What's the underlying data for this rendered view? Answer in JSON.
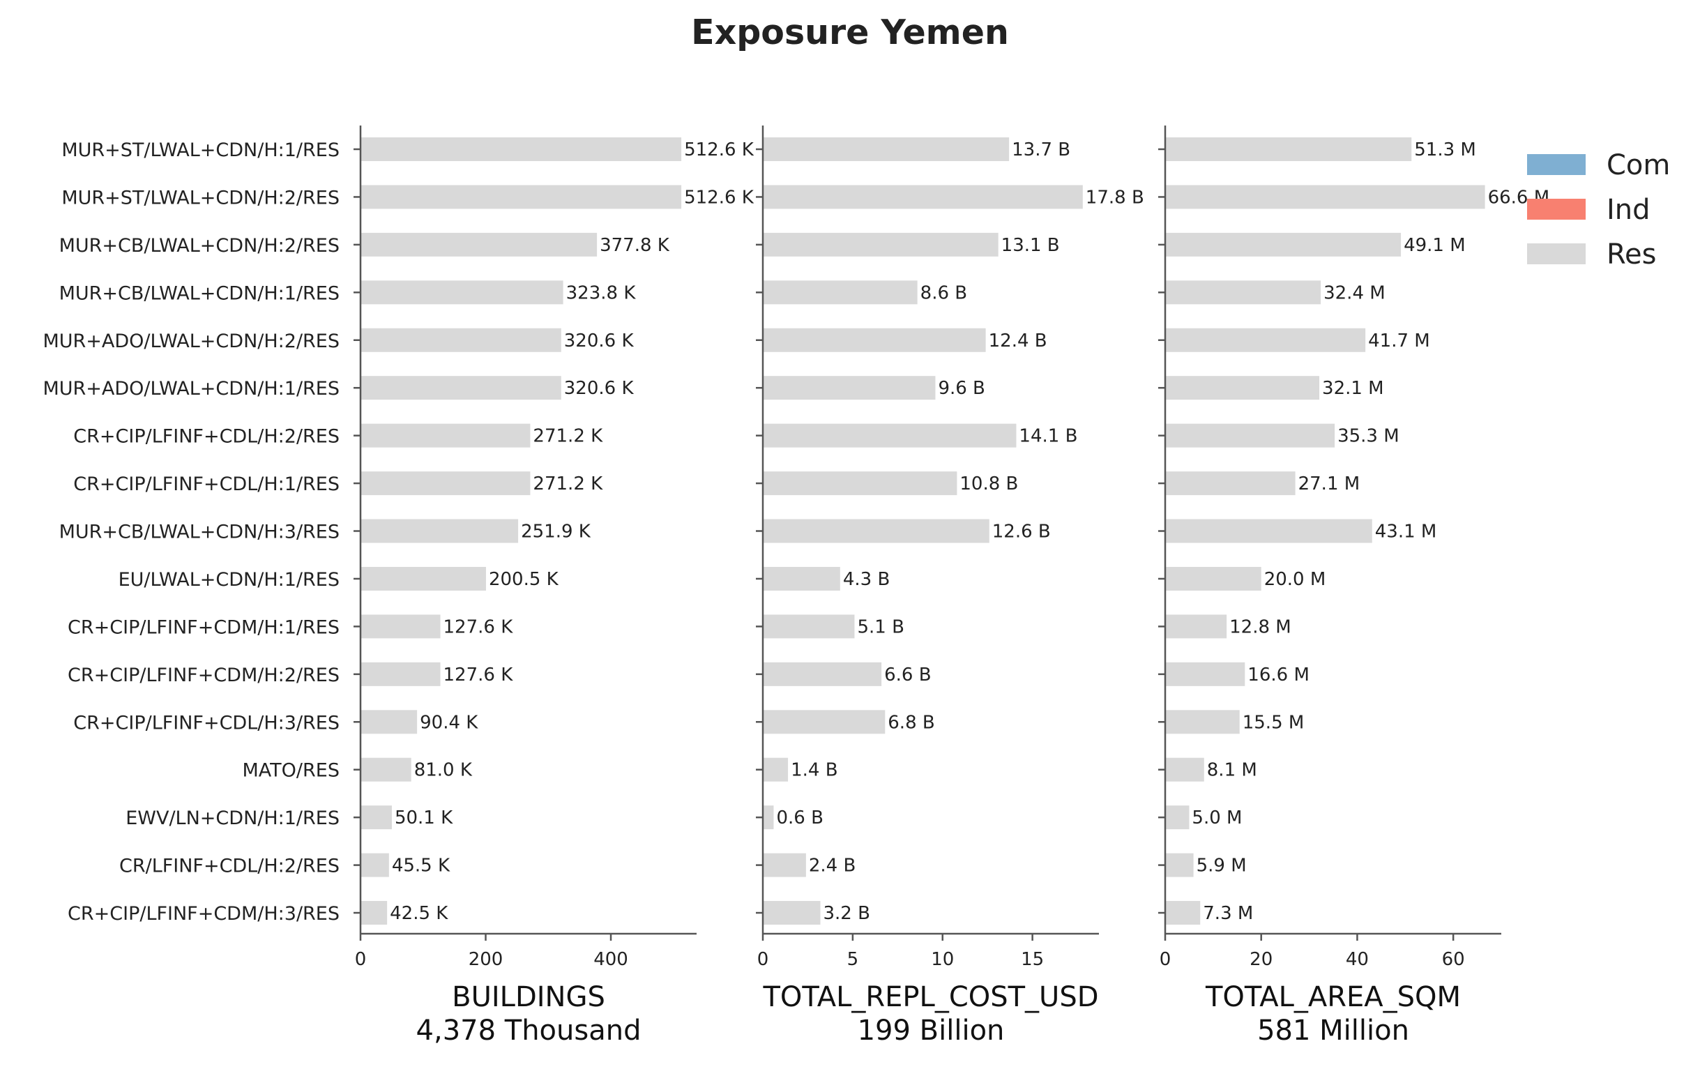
{
  "chart_data": {
    "type": "bar",
    "orientation": "horizontal",
    "title": "Exposure Yemen",
    "categories": [
      "MUR+ST/LWAL+CDN/H:1/RES",
      "MUR+ST/LWAL+CDN/H:2/RES",
      "MUR+CB/LWAL+CDN/H:2/RES",
      "MUR+CB/LWAL+CDN/H:1/RES",
      "MUR+ADO/LWAL+CDN/H:2/RES",
      "MUR+ADO/LWAL+CDN/H:1/RES",
      "CR+CIP/LFINF+CDL/H:2/RES",
      "CR+CIP/LFINF+CDL/H:1/RES",
      "MUR+CB/LWAL+CDN/H:3/RES",
      "EU/LWAL+CDN/H:1/RES",
      "CR+CIP/LFINF+CDM/H:1/RES",
      "CR+CIP/LFINF+CDM/H:2/RES",
      "CR+CIP/LFINF+CDL/H:3/RES",
      "MATO/RES",
      "EWV/LN+CDN/H:1/RES",
      "CR/LFINF+CDL/H:2/RES",
      "CR+CIP/LFINF+CDM/H:3/RES"
    ],
    "legend": {
      "placement": "top-right",
      "entries": [
        {
          "name": "Com",
          "color": "#7fafd2"
        },
        {
          "name": "Ind",
          "color": "#f88070"
        },
        {
          "name": "Res",
          "color": "#d9d9d9"
        }
      ]
    },
    "panels": [
      {
        "xlabel": "BUILDINGS",
        "total": "4,378 Thousand",
        "unit_suffix": "K",
        "xlim": [
          0,
          537
        ],
        "ticks": [
          0,
          200,
          400
        ],
        "series": [
          {
            "name": "Res",
            "color": "#d9d9d9",
            "values": [
              512.6,
              512.6,
              377.8,
              323.8,
              320.6,
              320.6,
              271.2,
              271.2,
              251.9,
              200.5,
              127.6,
              127.6,
              90.4,
              81.0,
              50.1,
              45.5,
              42.5
            ]
          }
        ],
        "labels": [
          "512.6 K",
          "512.6 K",
          "377.8 K",
          "323.8 K",
          "320.6 K",
          "320.6 K",
          "271.2 K",
          "271.2 K",
          "251.9 K",
          "200.5 K",
          "127.6 K",
          "127.6 K",
          "90.4 K",
          "81.0 K",
          "50.1 K",
          "45.5 K",
          "42.5 K"
        ]
      },
      {
        "xlabel": "TOTAL_REPL_COST_USD",
        "total": "199 Billion",
        "unit_suffix": "B",
        "xlim": [
          0,
          18.7
        ],
        "ticks": [
          0,
          5,
          10,
          15
        ],
        "series": [
          {
            "name": "Res",
            "color": "#d9d9d9",
            "values": [
              13.7,
              17.8,
              13.1,
              8.6,
              12.4,
              9.6,
              14.1,
              10.8,
              12.6,
              4.3,
              5.1,
              6.6,
              6.8,
              1.4,
              0.6,
              2.4,
              3.2
            ]
          }
        ],
        "labels": [
          "13.7 B",
          "17.8 B",
          "13.1 B",
          "8.6 B",
          "12.4 B",
          "9.6 B",
          "14.1 B",
          "10.8 B",
          "12.6 B",
          "4.3 B",
          "5.1 B",
          "6.6 B",
          "6.8 B",
          "1.4 B",
          "0.6 B",
          "2.4 B",
          "3.2 B"
        ]
      },
      {
        "xlabel": "TOTAL_AREA_SQM",
        "total": "581 Million",
        "unit_suffix": "M",
        "xlim": [
          0,
          70
        ],
        "ticks": [
          0,
          20,
          40,
          60
        ],
        "series": [
          {
            "name": "Res",
            "color": "#d9d9d9",
            "values": [
              51.3,
              66.6,
              49.1,
              32.4,
              41.7,
              32.1,
              35.3,
              27.1,
              43.1,
              20.0,
              12.8,
              16.6,
              15.5,
              8.1,
              5.0,
              5.9,
              7.3
            ]
          }
        ],
        "labels": [
          "51.3 M",
          "66.6 M",
          "49.1 M",
          "32.4 M",
          "41.7 M",
          "32.1 M",
          "35.3 M",
          "27.1 M",
          "43.1 M",
          "20.0 M",
          "12.8 M",
          "16.6 M",
          "15.5 M",
          "8.1 M",
          "5.0 M",
          "5.9 M",
          "7.3 M"
        ]
      }
    ]
  }
}
